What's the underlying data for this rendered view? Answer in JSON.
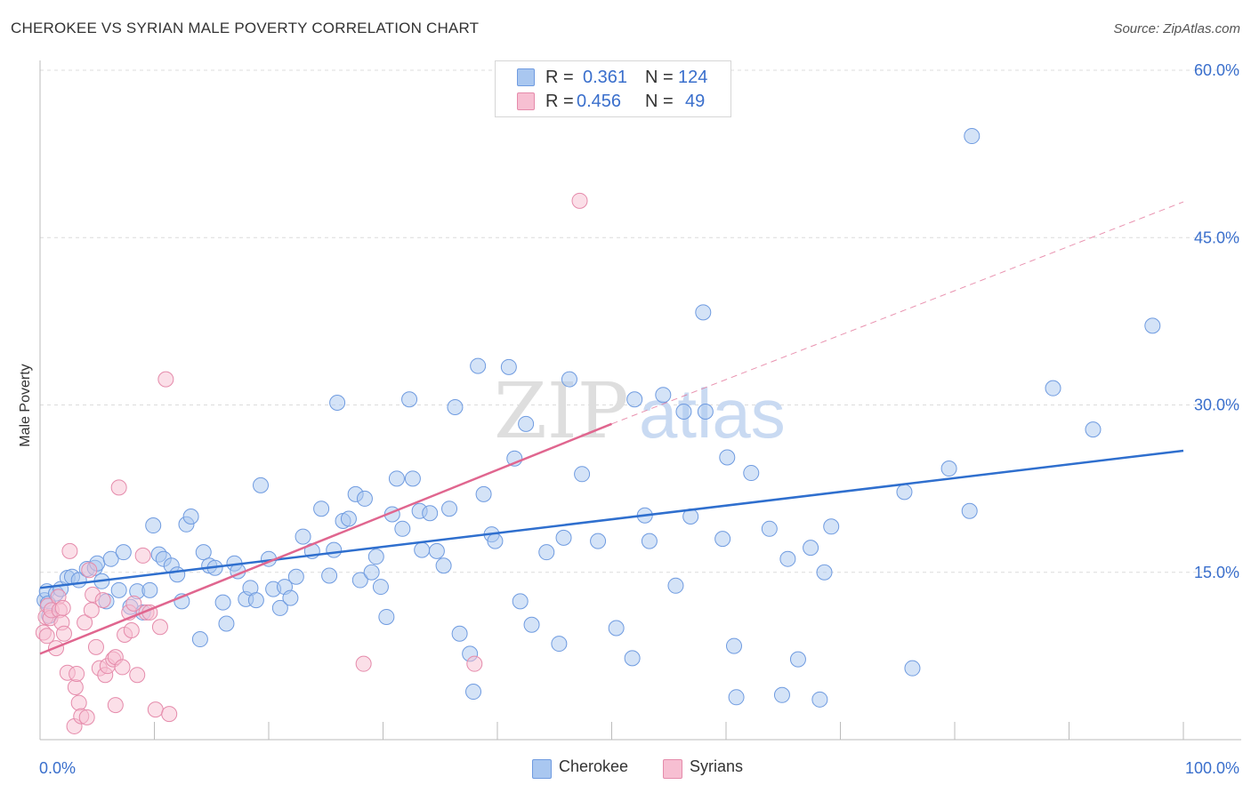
{
  "title": "CHEROKEE VS SYRIAN MALE POVERTY CORRELATION CHART",
  "source": "Source: ZipAtlas.com",
  "watermark": "ZIPatlas",
  "legend_stats": [
    {
      "r_label": "R =",
      "r_value": "0.361",
      "n_label": "N =",
      "n_value": "124",
      "color": "#a9c7f0",
      "border": "#6f9be0"
    },
    {
      "r_label": "R =",
      "r_value": "0.456",
      "n_label": "N =",
      "n_value": "49",
      "color": "#f7bfd2",
      "border": "#e58bab"
    }
  ],
  "colors": {
    "cherokee_fill": "#a9c7f0",
    "cherokee_stroke": "#6f9be0",
    "cherokee_line": "#2f6fce",
    "syrians_fill": "#f7bfd2",
    "syrians_stroke": "#e58bab",
    "syrians_line": "#e0668f",
    "grid": "#dcdcdc",
    "tick_text": "#3a6fcc"
  },
  "chart_data": {
    "type": "scatter",
    "title": "CHEROKEE VS SYRIAN MALE POVERTY CORRELATION CHART",
    "xlabel": "",
    "ylabel": "Male Poverty",
    "xlim": [
      0,
      100
    ],
    "ylim": [
      0,
      60
    ],
    "x_tick_labels": [
      {
        "value": 0,
        "label": "0.0%"
      },
      {
        "value": 100,
        "label": "100.0%"
      }
    ],
    "y_ticks": [
      {
        "value": 15,
        "label": "15.0%"
      },
      {
        "value": 30,
        "label": "30.0%"
      },
      {
        "value": 45,
        "label": "45.0%"
      },
      {
        "value": 60,
        "label": "60.0%"
      }
    ],
    "grid": true,
    "legend_position": "bottom",
    "series": [
      {
        "name": "Cherokee",
        "trend": {
          "x": [
            0,
            100
          ],
          "y": [
            13.6,
            25.9
          ]
        },
        "points": [
          [
            0.4,
            12.5
          ],
          [
            0.6,
            13.3
          ],
          [
            0.7,
            12.2
          ],
          [
            0.8,
            11.1
          ],
          [
            1.4,
            13.1
          ],
          [
            1.8,
            13.5
          ],
          [
            2.4,
            14.5
          ],
          [
            2.8,
            14.6
          ],
          [
            3.4,
            14.3
          ],
          [
            4.1,
            15.3
          ],
          [
            4.8,
            15.4
          ],
          [
            5.0,
            15.8
          ],
          [
            5.4,
            14.2
          ],
          [
            5.8,
            12.4
          ],
          [
            6.2,
            16.2
          ],
          [
            6.9,
            13.4
          ],
          [
            7.3,
            16.8
          ],
          [
            7.9,
            11.9
          ],
          [
            8.5,
            13.3
          ],
          [
            9.0,
            11.4
          ],
          [
            9.6,
            13.4
          ],
          [
            9.9,
            19.2
          ],
          [
            10.4,
            16.6
          ],
          [
            10.8,
            16.2
          ],
          [
            11.5,
            15.6
          ],
          [
            12.0,
            14.8
          ],
          [
            12.4,
            12.4
          ],
          [
            12.8,
            19.3
          ],
          [
            13.2,
            20.0
          ],
          [
            14.0,
            9.0
          ],
          [
            14.3,
            16.8
          ],
          [
            14.8,
            15.6
          ],
          [
            15.3,
            15.4
          ],
          [
            16.0,
            12.3
          ],
          [
            16.3,
            10.4
          ],
          [
            17.0,
            15.8
          ],
          [
            17.3,
            15.1
          ],
          [
            18.0,
            12.6
          ],
          [
            18.4,
            13.6
          ],
          [
            18.9,
            12.5
          ],
          [
            19.3,
            22.8
          ],
          [
            20.0,
            16.2
          ],
          [
            20.4,
            13.5
          ],
          [
            21.0,
            11.8
          ],
          [
            21.4,
            13.7
          ],
          [
            21.9,
            12.7
          ],
          [
            22.4,
            14.6
          ],
          [
            23.0,
            18.2
          ],
          [
            23.8,
            16.9
          ],
          [
            24.6,
            20.7
          ],
          [
            25.3,
            14.7
          ],
          [
            25.7,
            17.0
          ],
          [
            26.0,
            30.2
          ],
          [
            26.5,
            19.6
          ],
          [
            27.0,
            19.8
          ],
          [
            27.6,
            22.0
          ],
          [
            28.0,
            14.3
          ],
          [
            28.4,
            21.6
          ],
          [
            29.0,
            15.0
          ],
          [
            29.4,
            16.4
          ],
          [
            29.8,
            13.7
          ],
          [
            30.3,
            11.0
          ],
          [
            30.8,
            20.2
          ],
          [
            31.2,
            23.4
          ],
          [
            31.7,
            18.9
          ],
          [
            32.3,
            30.5
          ],
          [
            32.6,
            23.4
          ],
          [
            33.2,
            20.5
          ],
          [
            33.4,
            17.0
          ],
          [
            34.1,
            20.3
          ],
          [
            34.7,
            16.9
          ],
          [
            35.3,
            15.6
          ],
          [
            35.8,
            20.7
          ],
          [
            36.3,
            29.8
          ],
          [
            36.7,
            9.5
          ],
          [
            37.6,
            7.7
          ],
          [
            37.9,
            4.3
          ],
          [
            38.3,
            33.5
          ],
          [
            38.8,
            22.0
          ],
          [
            39.5,
            18.4
          ],
          [
            39.8,
            17.8
          ],
          [
            41.0,
            33.4
          ],
          [
            41.5,
            25.2
          ],
          [
            42.0,
            12.4
          ],
          [
            42.5,
            28.3
          ],
          [
            43.0,
            10.3
          ],
          [
            44.3,
            16.8
          ],
          [
            45.4,
            8.6
          ],
          [
            45.8,
            18.1
          ],
          [
            46.3,
            32.3
          ],
          [
            47.4,
            23.8
          ],
          [
            48.8,
            17.8
          ],
          [
            50.4,
            10.0
          ],
          [
            51.8,
            7.3
          ],
          [
            52.0,
            30.5
          ],
          [
            52.9,
            20.1
          ],
          [
            53.3,
            17.8
          ],
          [
            54.5,
            30.9
          ],
          [
            55.6,
            13.8
          ],
          [
            56.3,
            29.4
          ],
          [
            56.9,
            20.0
          ],
          [
            58.0,
            38.3
          ],
          [
            58.2,
            29.4
          ],
          [
            59.7,
            18.0
          ],
          [
            60.1,
            25.3
          ],
          [
            60.7,
            8.4
          ],
          [
            60.9,
            3.8
          ],
          [
            62.2,
            23.9
          ],
          [
            63.8,
            18.9
          ],
          [
            64.9,
            4.0
          ],
          [
            65.4,
            16.2
          ],
          [
            66.3,
            7.2
          ],
          [
            67.4,
            17.2
          ],
          [
            68.2,
            3.6
          ],
          [
            68.6,
            15.0
          ],
          [
            69.2,
            19.1
          ],
          [
            75.6,
            22.2
          ],
          [
            76.3,
            6.4
          ],
          [
            79.5,
            24.3
          ],
          [
            81.3,
            20.5
          ],
          [
            81.5,
            54.1
          ],
          [
            88.6,
            31.5
          ],
          [
            92.1,
            27.8
          ],
          [
            97.3,
            37.1
          ]
        ]
      },
      {
        "name": "Syrians",
        "trend": {
          "x": [
            0,
            50
          ],
          "y": [
            7.7,
            28.3
          ]
        },
        "trend_extension": {
          "x": [
            50,
            100
          ],
          "y": [
            28.3,
            48.2
          ]
        },
        "points": [
          [
            0.3,
            9.6
          ],
          [
            0.5,
            11.0
          ],
          [
            0.6,
            9.3
          ],
          [
            0.7,
            12.0
          ],
          [
            0.9,
            10.9
          ],
          [
            1.0,
            11.6
          ],
          [
            1.4,
            8.2
          ],
          [
            1.6,
            12.8
          ],
          [
            1.7,
            11.6
          ],
          [
            1.9,
            10.5
          ],
          [
            2.0,
            11.8
          ],
          [
            2.1,
            9.5
          ],
          [
            2.4,
            6.0
          ],
          [
            2.6,
            16.9
          ],
          [
            3.0,
            1.2
          ],
          [
            3.1,
            4.7
          ],
          [
            3.2,
            5.9
          ],
          [
            3.4,
            3.3
          ],
          [
            3.6,
            2.1
          ],
          [
            3.9,
            10.5
          ],
          [
            4.1,
            2.0
          ],
          [
            4.3,
            15.2
          ],
          [
            4.5,
            11.6
          ],
          [
            4.6,
            13.0
          ],
          [
            4.9,
            8.3
          ],
          [
            5.2,
            6.4
          ],
          [
            5.5,
            12.5
          ],
          [
            5.7,
            5.8
          ],
          [
            5.9,
            6.6
          ],
          [
            6.4,
            7.2
          ],
          [
            6.6,
            7.4
          ],
          [
            6.6,
            3.1
          ],
          [
            6.9,
            22.6
          ],
          [
            7.2,
            6.5
          ],
          [
            7.4,
            9.4
          ],
          [
            7.8,
            11.4
          ],
          [
            8.0,
            9.8
          ],
          [
            8.2,
            12.2
          ],
          [
            8.5,
            5.8
          ],
          [
            9.0,
            16.5
          ],
          [
            9.3,
            11.4
          ],
          [
            9.6,
            11.4
          ],
          [
            10.1,
            2.7
          ],
          [
            10.5,
            10.1
          ],
          [
            11.0,
            32.3
          ],
          [
            11.3,
            2.3
          ],
          [
            28.3,
            6.8
          ],
          [
            38.0,
            6.8
          ],
          [
            47.2,
            48.3
          ]
        ]
      }
    ]
  }
}
